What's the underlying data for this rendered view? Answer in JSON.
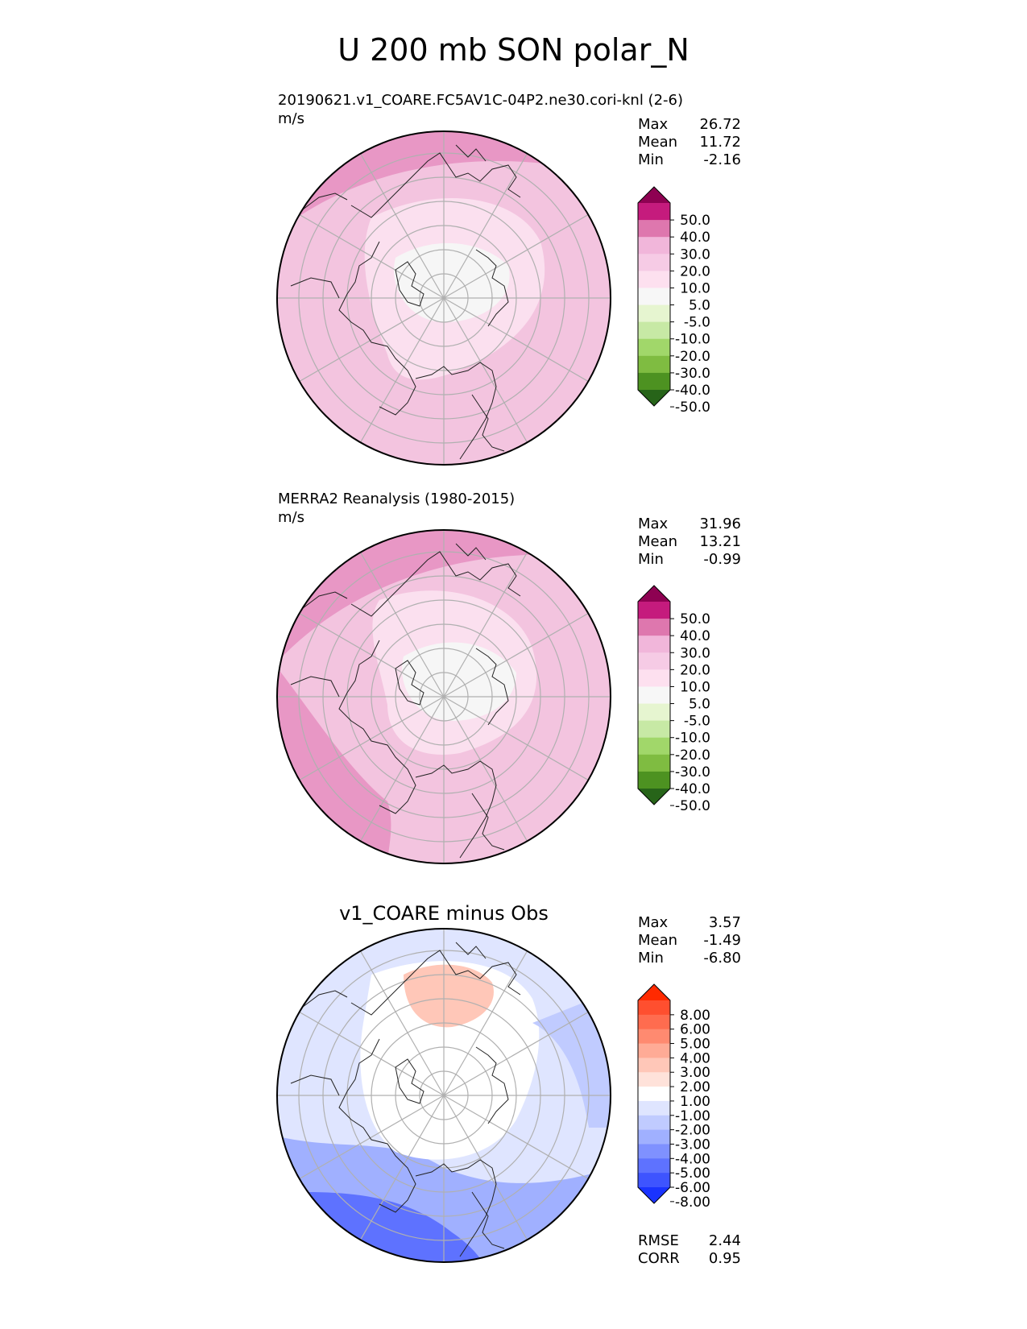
{
  "figure": {
    "title": "U 200 mb SON polar_N",
    "panels": [
      {
        "id": "test",
        "caption_line1": "20190621.v1_COARE.FC5AV1C-04P2.ne30.cori-knl (2-6)",
        "caption_line2": "m/s",
        "stats": [
          {
            "label": "Max",
            "value": "26.72"
          },
          {
            "label": "Mean",
            "value": "11.72"
          },
          {
            "label": "Min",
            "value": "-2.16"
          }
        ]
      },
      {
        "id": "reference",
        "caption_line1": "MERRA2 Reanalysis (1980-2015)",
        "caption_line2": "m/s",
        "stats": [
          {
            "label": "Max",
            "value": "31.96"
          },
          {
            "label": "Mean",
            "value": "13.21"
          },
          {
            "label": "Min",
            "value": "-0.99"
          }
        ]
      },
      {
        "id": "difference",
        "heading": "v1_COARE minus Obs",
        "stats": [
          {
            "label": "Max",
            "value": "3.57"
          },
          {
            "label": "Mean",
            "value": "-1.49"
          },
          {
            "label": "Min",
            "value": "-6.80"
          }
        ],
        "metrics": [
          {
            "label": "RMSE",
            "value": "2.44"
          },
          {
            "label": "CORR",
            "value": "0.95"
          }
        ]
      }
    ]
  },
  "chart_data": [
    {
      "type": "heatmap",
      "projection": "north polar stereographic",
      "units": "m/s",
      "field_summary": {
        "max": 26.72,
        "mean": 11.72,
        "min": -2.16
      },
      "colorbar": {
        "levels": [
          50.0,
          40.0,
          30.0,
          20.0,
          10.0,
          5.0,
          -5.0,
          -10.0,
          -20.0,
          -30.0,
          -40.0,
          -50.0
        ],
        "tick_labels": [
          "50.0",
          "40.0",
          "30.0",
          "20.0",
          "10.0",
          "5.0",
          "-5.0",
          "-10.0",
          "-20.0",
          "-30.0",
          "-40.0",
          "-50.0"
        ],
        "colors": [
          "#8e0152",
          "#c51b7d",
          "#de77ae",
          "#f1b6da",
          "#f6cbe5",
          "#fde0ef",
          "#f7f7f7",
          "#e6f5d0",
          "#c7e9a5",
          "#a1d76a",
          "#7fbc41",
          "#4d9221",
          "#276419"
        ],
        "extend": "both"
      }
    },
    {
      "type": "heatmap",
      "projection": "north polar stereographic",
      "units": "m/s",
      "field_summary": {
        "max": 31.96,
        "mean": 13.21,
        "min": -0.99
      },
      "colorbar": {
        "levels": [
          50.0,
          40.0,
          30.0,
          20.0,
          10.0,
          5.0,
          -5.0,
          -10.0,
          -20.0,
          -30.0,
          -40.0,
          -50.0
        ],
        "tick_labels": [
          "50.0",
          "40.0",
          "30.0",
          "20.0",
          "10.0",
          "5.0",
          "-5.0",
          "-10.0",
          "-20.0",
          "-30.0",
          "-40.0",
          "-50.0"
        ],
        "colors": [
          "#8e0152",
          "#c51b7d",
          "#de77ae",
          "#f1b6da",
          "#f6cbe5",
          "#fde0ef",
          "#f7f7f7",
          "#e6f5d0",
          "#c7e9a5",
          "#a1d76a",
          "#7fbc41",
          "#4d9221",
          "#276419"
        ],
        "extend": "both"
      }
    },
    {
      "type": "heatmap",
      "projection": "north polar stereographic",
      "title": "v1_COARE minus Obs",
      "field_summary": {
        "max": 3.57,
        "mean": -1.49,
        "min": -6.8,
        "rmse": 2.44,
        "corr": 0.95
      },
      "colorbar": {
        "levels": [
          8.0,
          6.0,
          5.0,
          4.0,
          3.0,
          2.0,
          1.0,
          -1.0,
          -2.0,
          -3.0,
          -4.0,
          -5.0,
          -6.0,
          -8.0
        ],
        "tick_labels": [
          "8.00",
          "6.00",
          "5.00",
          "4.00",
          "3.00",
          "2.00",
          "1.00",
          "-1.00",
          "-2.00",
          "-3.00",
          "-4.00",
          "-5.00",
          "-6.00",
          "-8.00"
        ],
        "colors": [
          "#ff2a00",
          "#ff4f2f",
          "#ff6c4f",
          "#ff8a70",
          "#ffab96",
          "#ffc7b8",
          "#ffe2da",
          "#ffffff",
          "#dfe5ff",
          "#c0cbff",
          "#a0b0ff",
          "#7f91ff",
          "#5e72ff",
          "#3e54ff",
          "#1a33ff"
        ],
        "extend": "both"
      }
    }
  ]
}
